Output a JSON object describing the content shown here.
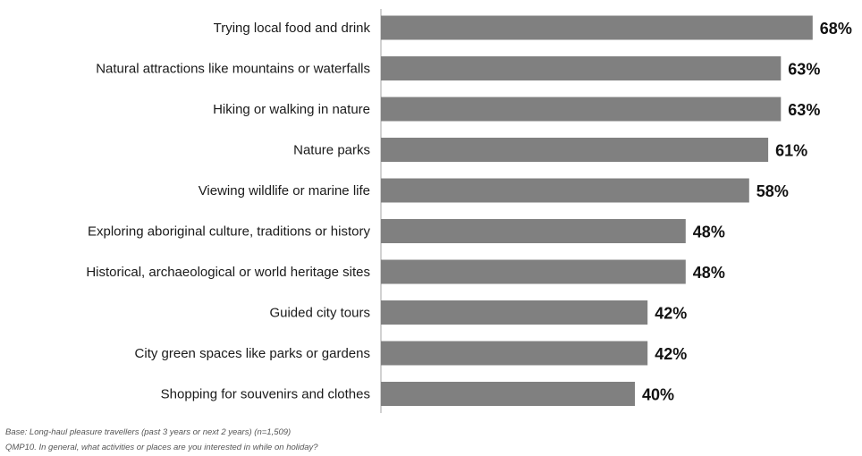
{
  "chart_data": {
    "type": "bar",
    "orientation": "horizontal",
    "categories": [
      "Trying local food and drink",
      "Natural attractions like mountains or waterfalls",
      "Hiking or walking in nature",
      "Nature parks",
      "Viewing wildlife or marine life",
      "Exploring aboriginal culture, traditions or history",
      "Historical, archaeological or world heritage sites",
      "Guided city tours",
      "City green spaces like parks or gardens",
      "Shopping for souvenirs and clothes"
    ],
    "values": [
      68,
      63,
      63,
      61,
      58,
      48,
      48,
      42,
      42,
      40
    ],
    "value_labels": [
      "68%",
      "63%",
      "63%",
      "61%",
      "58%",
      "48%",
      "48%",
      "42%",
      "42%",
      "40%"
    ],
    "xlim": [
      0,
      70
    ],
    "grid": false,
    "bar_color": "#808080"
  },
  "notes": {
    "base": "Base: Long-haul pleasure travellers (past 3 years or next 2 years) (n=1,509)",
    "question": "QMP10. In general, what activities or places are you interested in while on holiday?"
  }
}
